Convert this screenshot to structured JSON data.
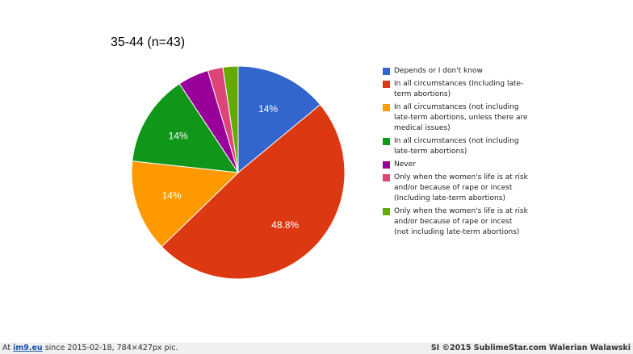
{
  "chart_data": {
    "type": "pie",
    "title": "35-44 (n=43)",
    "slices": [
      {
        "label": "Depends or I don't know",
        "value": 14.0,
        "data_label": "14%",
        "color": "#3366cc"
      },
      {
        "label": "In all circumstances (Including late-term abortions)",
        "value": 48.8,
        "data_label": "48.8%",
        "color": "#dc3912"
      },
      {
        "label": "In all circumstances (not including late-term abortions, unless there are medical issues)",
        "value": 14.0,
        "data_label": "14%",
        "color": "#ff9900"
      },
      {
        "label": "In all circumstances (not including late-term abortions)",
        "value": 14.0,
        "data_label": "14%",
        "color": "#109618"
      },
      {
        "label": "Never",
        "value": 4.7,
        "data_label": "",
        "color": "#990099"
      },
      {
        "label": "Only when the women's life is at risk and/or because of rape or incest (Including late-term abortions)",
        "value": 2.3,
        "data_label": "",
        "color": "#dd4477"
      },
      {
        "label": "Only when the women's life is at risk and/or because of rape or incest (not including late-term abortions)",
        "value": 2.3,
        "data_label": "",
        "color": "#66aa00"
      }
    ],
    "legend_position": "right"
  },
  "footer": {
    "prefix": "At ",
    "site": "im9.eu",
    "suffix": " since 2015-02-18, 784×427px pic.",
    "credit": "SI ©2015 SublimeStar.com Walerian Walawski"
  }
}
